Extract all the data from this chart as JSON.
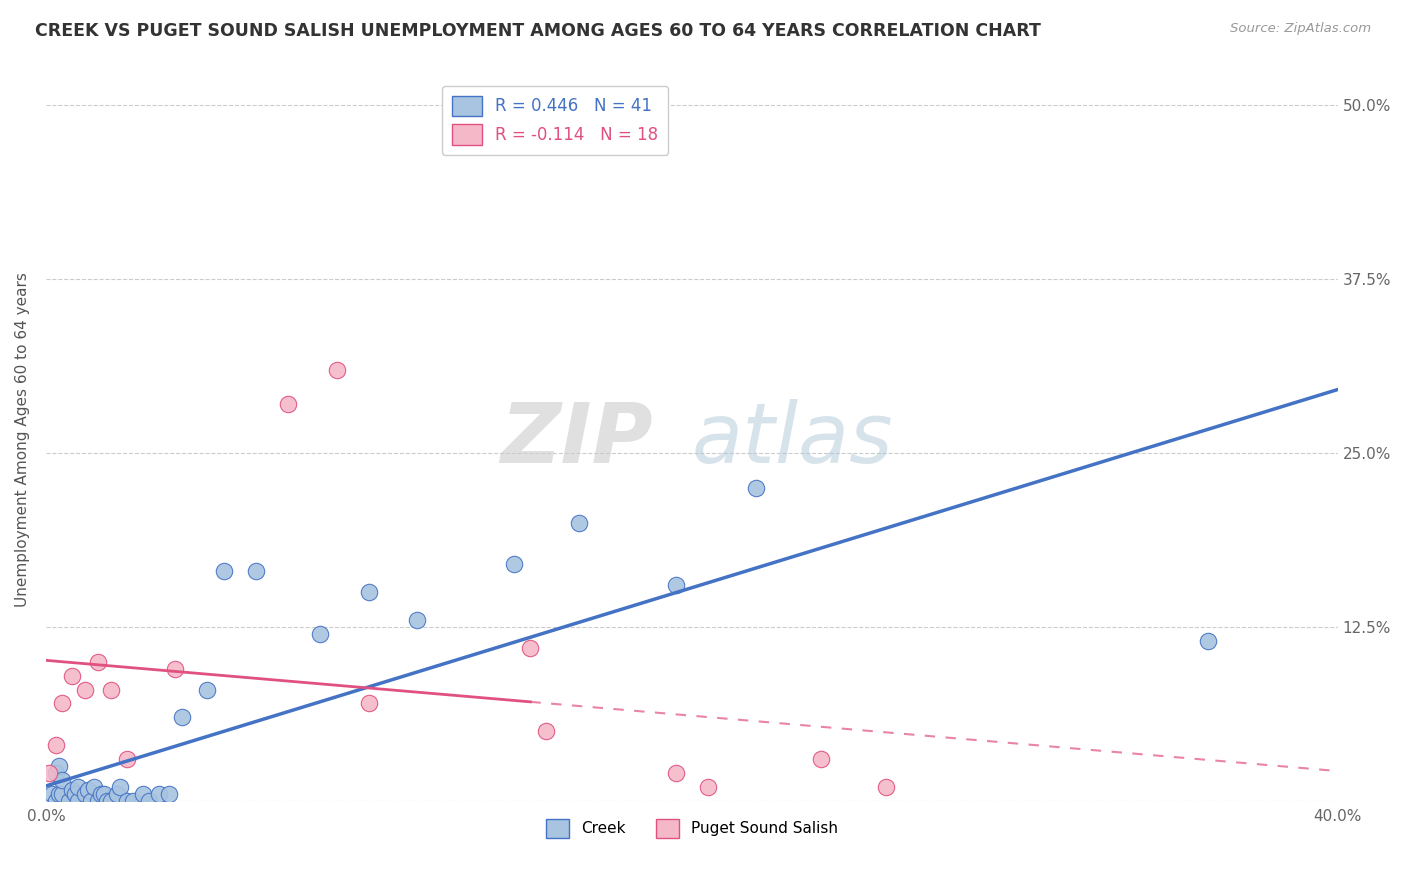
{
  "title": "CREEK VS PUGET SOUND SALISH UNEMPLOYMENT AMONG AGES 60 TO 64 YEARS CORRELATION CHART",
  "source": "Source: ZipAtlas.com",
  "ylabel": "Unemployment Among Ages 60 to 64 years",
  "xlim": [
    0.0,
    0.4
  ],
  "ylim": [
    0.0,
    0.52
  ],
  "xticks": [
    0.0,
    0.05,
    0.1,
    0.15,
    0.2,
    0.25,
    0.3,
    0.35,
    0.4
  ],
  "xticklabels": [
    "0.0%",
    "",
    "",
    "",
    "",
    "",
    "",
    "",
    "40.0%"
  ],
  "yticks": [
    0.0,
    0.125,
    0.25,
    0.375,
    0.5
  ],
  "yticklabels_right": [
    "",
    "12.5%",
    "25.0%",
    "37.5%",
    "50.0%"
  ],
  "creek_color": "#a8c4e0",
  "creek_line_color": "#4472c4",
  "puget_color": "#f4b8c8",
  "puget_line_color": "#e05080",
  "R_creek": 0.446,
  "N_creek": 41,
  "R_puget": -0.114,
  "N_puget": 18,
  "background_color": "#ffffff",
  "watermark_zip": "ZIP",
  "watermark_atlas": "atlas",
  "creek_x": [
    0.002,
    0.003,
    0.003,
    0.004,
    0.004,
    0.005,
    0.005,
    0.007,
    0.008,
    0.009,
    0.01,
    0.01,
    0.012,
    0.013,
    0.014,
    0.015,
    0.016,
    0.017,
    0.018,
    0.019,
    0.02,
    0.022,
    0.023,
    0.025,
    0.027,
    0.03,
    0.032,
    0.035,
    0.038,
    0.042,
    0.05,
    0.055,
    0.065,
    0.085,
    0.1,
    0.115,
    0.145,
    0.165,
    0.195,
    0.22,
    0.36
  ],
  "creek_y": [
    0.005,
    0.0,
    0.02,
    0.005,
    0.025,
    0.005,
    0.015,
    0.0,
    0.008,
    0.005,
    0.0,
    0.01,
    0.005,
    0.008,
    0.0,
    0.01,
    0.0,
    0.005,
    0.005,
    0.0,
    0.0,
    0.005,
    0.01,
    0.0,
    0.0,
    0.005,
    0.0,
    0.005,
    0.005,
    0.06,
    0.08,
    0.165,
    0.165,
    0.12,
    0.15,
    0.13,
    0.17,
    0.2,
    0.155,
    0.225,
    0.115
  ],
  "puget_x": [
    0.001,
    0.003,
    0.005,
    0.008,
    0.012,
    0.016,
    0.02,
    0.025,
    0.04,
    0.075,
    0.09,
    0.1,
    0.15,
    0.155,
    0.195,
    0.205,
    0.24,
    0.26
  ],
  "puget_y": [
    0.02,
    0.04,
    0.07,
    0.09,
    0.08,
    0.1,
    0.08,
    0.03,
    0.095,
    0.285,
    0.31,
    0.07,
    0.11,
    0.05,
    0.02,
    0.01,
    0.03,
    0.01
  ],
  "puget_solid_xlim": [
    0.0,
    0.15
  ],
  "puget_dash_xlim": [
    0.15,
    0.4
  ]
}
